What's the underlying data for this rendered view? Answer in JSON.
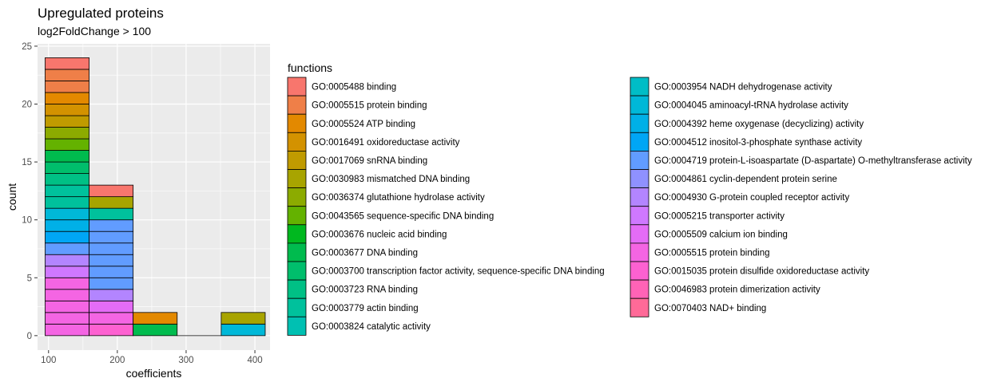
{
  "chart_data": {
    "type": "bar",
    "title": "Upregulated proteins",
    "subtitle": "log2FoldChange > 100",
    "xlabel": "coefficients",
    "ylabel": "count",
    "xlim": [
      84,
      422
    ],
    "ylim": [
      -1.25,
      25.2
    ],
    "x_ticks": [
      100,
      200,
      300,
      400
    ],
    "y_ticks": [
      0,
      5,
      10,
      15,
      20,
      25
    ],
    "bin_edges": [
      95,
      159,
      223,
      287,
      351,
      415
    ],
    "legend_title": "functions",
    "legend_position": "right",
    "grid": true,
    "series": [
      {
        "name": "GO:0005488 binding",
        "color": "#F8766D",
        "values": [
          1,
          1,
          0,
          0,
          0
        ]
      },
      {
        "name": "GO:0005515 protein binding",
        "color": "#EF7F48",
        "values": [
          2,
          0,
          0,
          0,
          0
        ]
      },
      {
        "name": "GO:0005524 ATP binding",
        "color": "#E38900",
        "values": [
          1,
          0,
          1,
          0,
          0
        ]
      },
      {
        "name": "GO:0016491 oxidoreductase activity",
        "color": "#D39200",
        "values": [
          1,
          0,
          0,
          0,
          0
        ]
      },
      {
        "name": "GO:0017069 snRNA binding",
        "color": "#C09B00",
        "values": [
          1,
          0,
          0,
          0,
          0
        ]
      },
      {
        "name": "GO:0030983 mismatched DNA binding",
        "color": "#A8A400",
        "values": [
          0,
          1,
          0,
          0,
          1
        ]
      },
      {
        "name": "GO:0036374 glutathione hydrolase activity",
        "color": "#8CAB00",
        "values": [
          1,
          0,
          0,
          0,
          0
        ]
      },
      {
        "name": "GO:0043565 sequence-specific DNA binding",
        "color": "#64B200",
        "values": [
          1,
          0,
          0,
          0,
          0
        ]
      },
      {
        "name": "GO:0003676 nucleic acid binding",
        "color": "#00B81F",
        "values": [
          0,
          0,
          0,
          0,
          0
        ]
      },
      {
        "name": "GO:0003677 DNA binding",
        "color": "#00BB4E",
        "values": [
          1,
          0,
          1,
          0,
          0
        ]
      },
      {
        "name": "GO:0003700 transcription factor activity, sequence-specific DNA binding",
        "color": "#00BE6C",
        "values": [
          1,
          0,
          0,
          0,
          0
        ]
      },
      {
        "name": "GO:0003723 RNA binding",
        "color": "#00C085",
        "values": [
          1,
          0,
          0,
          0,
          0
        ]
      },
      {
        "name": "GO:0003779 actin binding",
        "color": "#00C19C",
        "values": [
          2,
          1,
          0,
          0,
          0
        ]
      },
      {
        "name": "GO:0003824 catalytic activity",
        "color": "#00C0B2",
        "values": [
          0,
          0,
          0,
          0,
          0
        ]
      },
      {
        "name": "GO:0003954 NADH dehydrogenase activity",
        "color": "#00BDC6",
        "values": [
          0,
          0,
          0,
          0,
          0
        ]
      },
      {
        "name": "GO:0004045 aminoacyl-tRNA hydrolase activity",
        "color": "#00B8D8",
        "values": [
          1,
          0,
          0,
          0,
          1
        ]
      },
      {
        "name": "GO:0004392 heme oxygenase (decyclizing) activity",
        "color": "#00B0E7",
        "values": [
          1,
          0,
          0,
          0,
          0
        ]
      },
      {
        "name": "GO:0004512 inositol-3-phosphate synthase activity",
        "color": "#00A6F5",
        "values": [
          1,
          0,
          0,
          0,
          0
        ]
      },
      {
        "name": "GO:0004719 protein-L-isoaspartate (D-aspartate) O-methyltransferase activity",
        "color": "#619CFF",
        "values": [
          1,
          6,
          0,
          0,
          0
        ]
      },
      {
        "name": "GO:0004861 cyclin-dependent protein serine",
        "color": "#8F91FF",
        "values": [
          0,
          0,
          0,
          0,
          0
        ]
      },
      {
        "name": "GO:0004930 G-protein coupled receptor activity",
        "color": "#B385FF",
        "values": [
          1,
          1,
          0,
          0,
          0
        ]
      },
      {
        "name": "GO:0005215 transporter activity",
        "color": "#CF78FF",
        "values": [
          1,
          0,
          0,
          0,
          0
        ]
      },
      {
        "name": "GO:0005509 calcium ion binding",
        "color": "#E46CF6",
        "values": [
          0,
          1,
          0,
          0,
          0
        ]
      },
      {
        "name": "GO:0005515 protein binding",
        "color": "#F465E3",
        "values": [
          5,
          1,
          0,
          0,
          0
        ]
      },
      {
        "name": "GO:0015035 protein disulfide oxidoreductase activity",
        "color": "#FD61D1",
        "values": [
          0,
          1,
          0,
          0,
          0
        ]
      },
      {
        "name": "GO:0046983 protein dimerization activity",
        "color": "#FF63B6",
        "values": [
          0,
          0,
          0,
          0,
          0
        ]
      },
      {
        "name": "GO:0070403 NAD+ binding",
        "color": "#FF6A98",
        "values": [
          0,
          0,
          0,
          0,
          0
        ]
      }
    ]
  }
}
